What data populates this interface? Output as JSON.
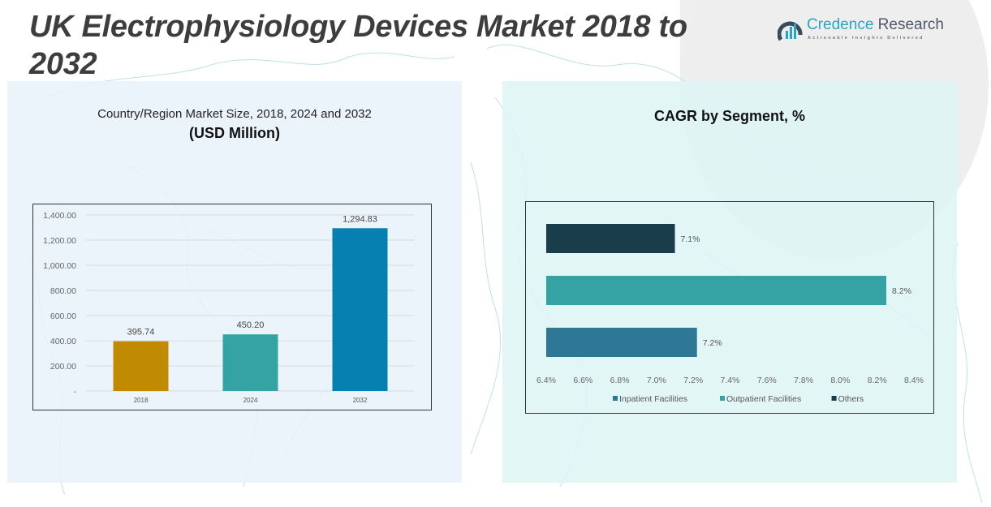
{
  "header": {
    "title": "UK Electrophysiology Devices Market 2018 to 2032",
    "logo": {
      "name_part1": "Credence",
      "name_part2": "Research",
      "tagline": "Actionable Insights Delivered",
      "icon": "bar-chart-circle-icon"
    }
  },
  "left_panel": {
    "title": "Country/Region Market Size, 2018, 2024 and 2032",
    "subtitle": "(USD Million)"
  },
  "right_panel": {
    "title": "CAGR by Segment, %"
  },
  "chart_data": [
    {
      "type": "bar",
      "title": "Country/Region Market Size, 2018, 2024 and 2032",
      "subtitle": "(USD Million)",
      "categories": [
        "2018",
        "2024",
        "2032"
      ],
      "values": [
        395.74,
        450.2,
        1294.83
      ],
      "data_labels": [
        "395.74",
        "450.20",
        "1,294.83"
      ],
      "colors": [
        "#c08b00",
        "#35a3a3",
        "#0580b0"
      ],
      "ylim": [
        0,
        1400
      ],
      "yticks": [
        0,
        200,
        400,
        600,
        800,
        1000,
        1200,
        1400
      ],
      "ytick_labels": [
        "-",
        "200.00",
        "400.00",
        "600.00",
        "800.00",
        "1,000.00",
        "1,200.00",
        "1,400.00"
      ],
      "xlabel": "",
      "ylabel": "",
      "grid": true,
      "legend": "none"
    },
    {
      "type": "bar",
      "orientation": "horizontal",
      "title": "CAGR by Segment, %",
      "categories": [
        "Others",
        "Outpatient Facilities",
        "Inpatient Facilities"
      ],
      "values": [
        7.1,
        8.25,
        7.22
      ],
      "data_labels": [
        "7.1%",
        "8.2%",
        "7.2%"
      ],
      "colors": [
        "#1a3d4c",
        "#35a3a3",
        "#2e7896"
      ],
      "xlim": [
        6.4,
        8.4
      ],
      "xticks": [
        6.4,
        6.6,
        6.8,
        7.0,
        7.2,
        7.4,
        7.6,
        7.8,
        8.0,
        8.2,
        8.4
      ],
      "xtick_labels": [
        "6.4%",
        "6.6%",
        "6.8%",
        "7.0%",
        "7.2%",
        "7.4%",
        "7.6%",
        "7.8%",
        "8.0%",
        "8.2%",
        "8.4%"
      ],
      "legend_position": "bottom",
      "legend": [
        {
          "label": "Inpatient Facilities",
          "color": "#2e7896"
        },
        {
          "label": "Outpatient Facilities",
          "color": "#35a3a3"
        },
        {
          "label": "Others",
          "color": "#1a3d4c"
        }
      ],
      "grid": false
    }
  ]
}
